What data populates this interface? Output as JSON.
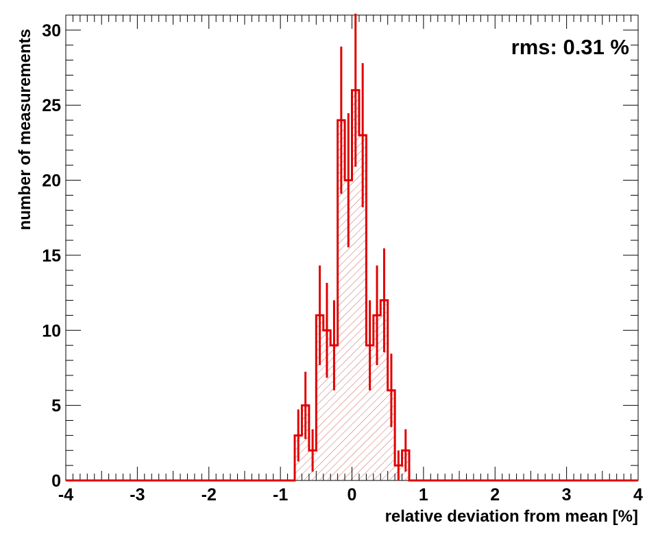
{
  "chart_data": {
    "type": "histogram",
    "title": "",
    "xlabel": "relative deviation from mean [%]",
    "ylabel": "number of measurements",
    "annotation": "rms: 0.31 %",
    "xlim": [
      -4,
      4
    ],
    "ylim": [
      0,
      31
    ],
    "x_ticks": [
      "-4",
      "-3",
      "-2",
      "-1",
      "0",
      "1",
      "2",
      "3",
      "4"
    ],
    "y_ticks": [
      "0",
      "5",
      "10",
      "15",
      "20",
      "25",
      "30"
    ],
    "bin_width": 0.1,
    "bins": [
      {
        "x": -0.8,
        "count": 3,
        "error": 1.73
      },
      {
        "x": -0.7,
        "count": 5,
        "error": 2.24
      },
      {
        "x": -0.6,
        "count": 2,
        "error": 1.41
      },
      {
        "x": -0.5,
        "count": 11,
        "error": 3.32
      },
      {
        "x": -0.4,
        "count": 10,
        "error": 3.16
      },
      {
        "x": -0.3,
        "count": 9,
        "error": 3.0
      },
      {
        "x": -0.2,
        "count": 24,
        "error": 4.9
      },
      {
        "x": -0.1,
        "count": 20,
        "error": 4.47
      },
      {
        "x": 0.0,
        "count": 26,
        "error": 5.1
      },
      {
        "x": 0.1,
        "count": 23,
        "error": 4.8
      },
      {
        "x": 0.2,
        "count": 9,
        "error": 3.0
      },
      {
        "x": 0.3,
        "count": 11,
        "error": 3.32
      },
      {
        "x": 0.4,
        "count": 12,
        "error": 3.46
      },
      {
        "x": 0.5,
        "count": 6,
        "error": 2.45
      },
      {
        "x": 0.6,
        "count": 1,
        "error": 1.0
      },
      {
        "x": 0.7,
        "count": 2,
        "error": 1.41
      }
    ],
    "colors": {
      "line": "#e00000",
      "hatch": "#c86464",
      "axis": "#000000"
    }
  }
}
